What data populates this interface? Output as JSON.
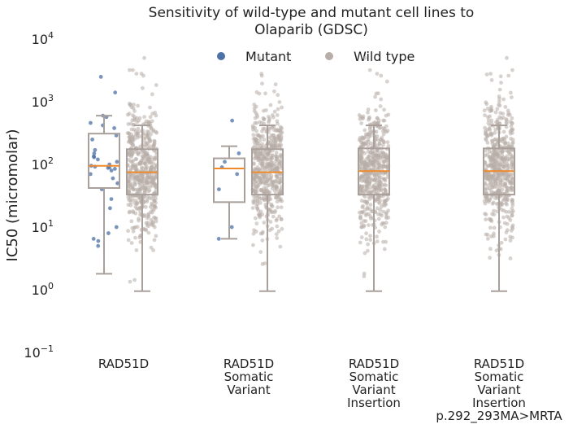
{
  "chart_data": {
    "type": "box+strip",
    "title_lines": [
      "Sensitivity of wild-type and mutant cell lines to",
      "Olaparib (GDSC)"
    ],
    "ylabel": "IC50 (micromolar)",
    "yscale": "log",
    "ylim": [
      0.1,
      10000
    ],
    "yticks": [
      {
        "value": 0.1,
        "base": "10",
        "exp": "−1"
      },
      {
        "value": 1,
        "base": "10",
        "exp": "0"
      },
      {
        "value": 10,
        "base": "10",
        "exp": "1"
      },
      {
        "value": 100,
        "base": "10",
        "exp": "2"
      },
      {
        "value": 1000,
        "base": "10",
        "exp": "3"
      },
      {
        "value": 10000,
        "base": "10",
        "exp": "4"
      }
    ],
    "legend": {
      "placement": "top-center",
      "items": [
        {
          "label": "Mutant",
          "color": "#4c72a6"
        },
        {
          "label": "Wild type",
          "color": "#b8ada8"
        }
      ]
    },
    "colors": {
      "mutant": "#4c72a6",
      "wild_type": "#b8ada8",
      "median": "#ee8a2c",
      "box": "#aaa09b"
    },
    "grid": false,
    "groups": [
      {
        "label_lines": [
          "RAD51D"
        ],
        "mutant": {
          "whisker_low": 1.8,
          "q1": 42,
          "median": 95,
          "q3": 310,
          "whisker_high": 600,
          "points": [
            2500,
            1400,
            600,
            570,
            460,
            420,
            380,
            290,
            250,
            170,
            150,
            135,
            130,
            120,
            110,
            100,
            95,
            92,
            90,
            88,
            85,
            80,
            70,
            60,
            50,
            40,
            28,
            20,
            10,
            8,
            6.5,
            6,
            5
          ]
        },
        "wild_type": {
          "whisker_low": 0.95,
          "q1": 33,
          "median": 75,
          "q3": 175,
          "whisker_high": 420
        }
      },
      {
        "label_lines": [
          "RAD51D",
          "Somatic",
          "Variant"
        ],
        "mutant": {
          "whisker_low": 6.5,
          "q1": 25,
          "median": 86,
          "q3": 125,
          "whisker_high": 195,
          "points": [
            500,
            150,
            110,
            90,
            70,
            40,
            10,
            6.5
          ]
        },
        "wild_type": {
          "whisker_low": 0.95,
          "q1": 33,
          "median": 75,
          "q3": 175,
          "whisker_high": 420
        }
      },
      {
        "label_lines": [
          "RAD51D",
          "Somatic",
          "Variant",
          "Insertion"
        ],
        "mutant": null,
        "wild_type": {
          "whisker_low": 0.95,
          "q1": 33,
          "median": 78,
          "q3": 180,
          "whisker_high": 420
        }
      },
      {
        "label_lines": [
          "RAD51D",
          "Somatic",
          "Variant",
          "Insertion",
          "p.292_293MA>MRTA"
        ],
        "mutant": null,
        "wild_type": {
          "whisker_low": 0.95,
          "q1": 33,
          "median": 78,
          "q3": 180,
          "whisker_high": 420
        }
      }
    ]
  }
}
